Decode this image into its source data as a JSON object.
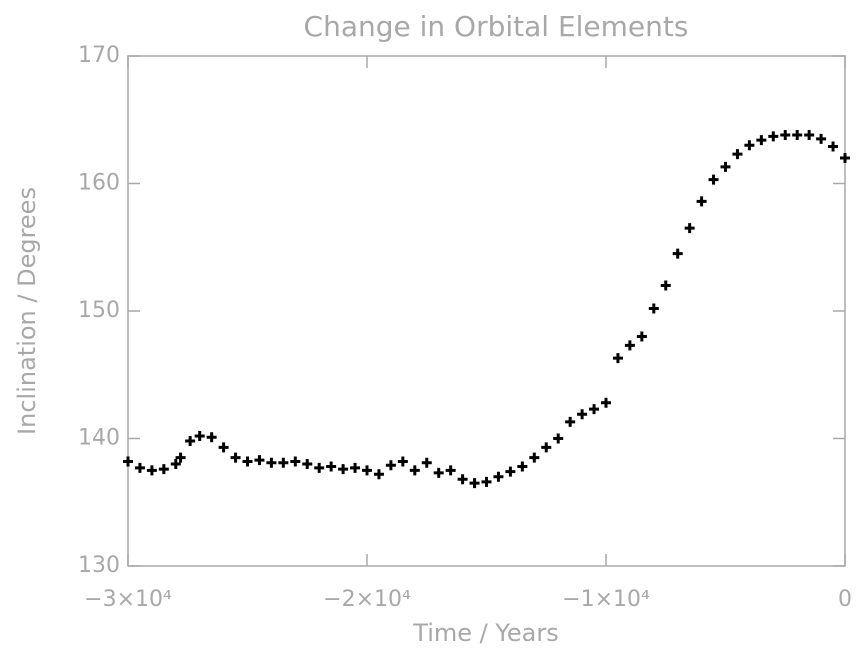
{
  "chart_data": {
    "type": "scatter",
    "title": "Change in Orbital Elements",
    "x_label": "Time / Years",
    "y_label": "Inclination / Degrees",
    "xlim": [
      -30000,
      0
    ],
    "ylim": [
      130,
      170
    ],
    "xticks": [
      {
        "value": -30000,
        "label": "−3×10⁴"
      },
      {
        "value": -20000,
        "label": "−2×10⁴"
      },
      {
        "value": -10000,
        "label": "−1×10⁴"
      },
      0
    ],
    "yticks": [
      130,
      140,
      150,
      160,
      170
    ],
    "color": "#000000",
    "axis_color": "#a8a8a8",
    "x": [
      -30000,
      -29500,
      -29000,
      -28500,
      -28000,
      -27800,
      -27400,
      -27000,
      -26500,
      -26000,
      -25500,
      -25000,
      -24500,
      -24000,
      -23500,
      -23000,
      -22500,
      -22000,
      -21500,
      -21000,
      -20500,
      -20000,
      -19500,
      -19000,
      -18500,
      -18000,
      -17500,
      -17000,
      -16500,
      -16000,
      -15500,
      -15000,
      -14500,
      -14000,
      -13500,
      -13000,
      -12500,
      -12000,
      -11500,
      -11000,
      -10500,
      -10000,
      -9500,
      -9000,
      -8500,
      -8000,
      -7500,
      -7000,
      -6500,
      -6000,
      -5500,
      -5000,
      -4500,
      -4000,
      -3500,
      -3000,
      -2500,
      -2000,
      -1500,
      -1000,
      -500,
      0
    ],
    "values": [
      138.2,
      137.7,
      137.5,
      137.6,
      138.0,
      138.5,
      139.8,
      140.2,
      140.1,
      139.3,
      138.5,
      138.2,
      138.3,
      138.1,
      138.1,
      138.2,
      138.0,
      137.7,
      137.8,
      137.6,
      137.7,
      137.5,
      137.2,
      137.9,
      138.2,
      137.5,
      138.1,
      137.3,
      137.5,
      136.8,
      136.5,
      136.6,
      137.0,
      137.4,
      137.8,
      138.5,
      139.3,
      140.0,
      141.3,
      141.9,
      142.3,
      142.8,
      146.3,
      147.3,
      148.0,
      150.2,
      152.0,
      154.5,
      156.5,
      158.6,
      160.3,
      161.3,
      162.3,
      163.0,
      163.4,
      163.7,
      163.8,
      163.8,
      163.8,
      163.5,
      162.9,
      162.0
    ]
  }
}
